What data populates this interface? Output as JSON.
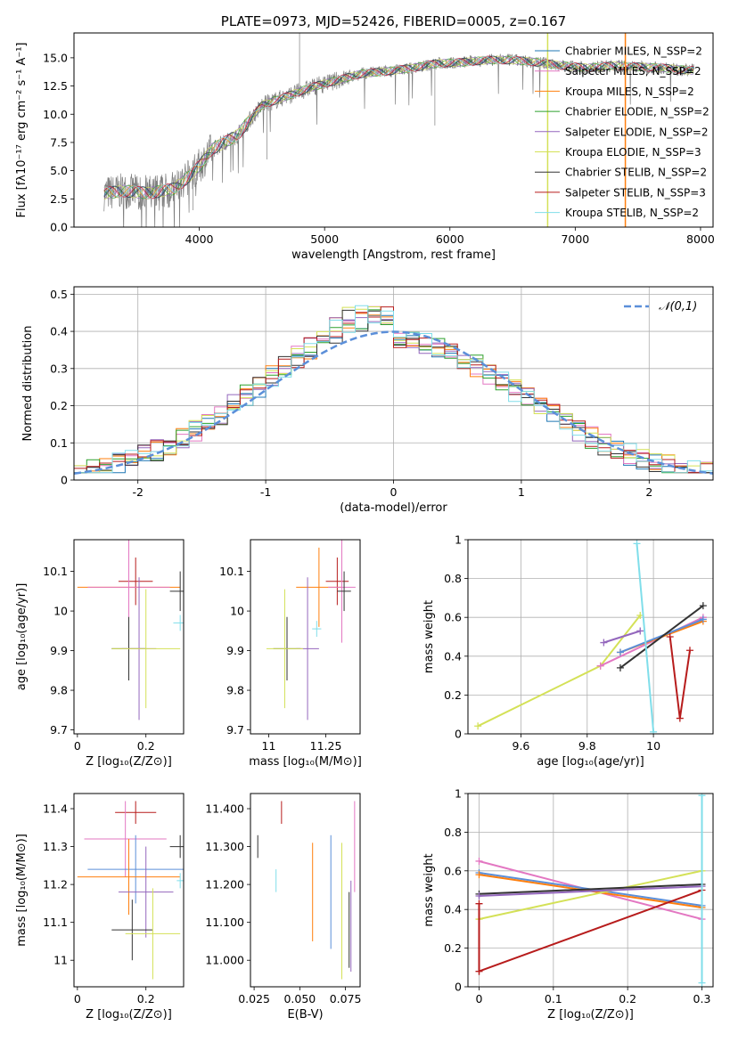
{
  "chart_data": [
    {
      "id": "spectrum",
      "type": "line",
      "title": "PLATE=0973, MJD=52426, FIBERID=0005, z=0.167",
      "xlabel": "wavelength [Angstrom, rest frame]",
      "ylabel": "Flux [fλ10⁻¹⁷ erg cm⁻² s⁻¹ A⁻¹]",
      "xlim": [
        3000,
        8100
      ],
      "ylim": [
        0,
        17.2
      ],
      "xticks": [
        4000,
        5000,
        6000,
        7000,
        8000
      ],
      "yticks": [
        0.0,
        2.5,
        5.0,
        7.5,
        10.0,
        12.5,
        15.0
      ],
      "grid": false,
      "legend_position": "top-right",
      "continuum": [
        [
          3240,
          3.0
        ],
        [
          3400,
          3.2
        ],
        [
          3600,
          3.0
        ],
        [
          3800,
          3.4
        ],
        [
          3900,
          4.3
        ],
        [
          4000,
          5.4
        ],
        [
          4100,
          6.9
        ],
        [
          4300,
          8.1
        ],
        [
          4500,
          10.8
        ],
        [
          4700,
          11.6
        ],
        [
          4900,
          12.4
        ],
        [
          5100,
          13.0
        ],
        [
          5300,
          13.6
        ],
        [
          5500,
          13.8
        ],
        [
          5700,
          14.1
        ],
        [
          5900,
          14.5
        ],
        [
          6100,
          14.6
        ],
        [
          6300,
          14.8
        ],
        [
          6500,
          14.8
        ],
        [
          6700,
          14.6
        ],
        [
          6900,
          14.3
        ],
        [
          7100,
          14.1
        ],
        [
          7300,
          14.3
        ],
        [
          7500,
          14.2
        ],
        [
          7700,
          14.1
        ],
        [
          7900,
          13.9
        ]
      ],
      "legend": [
        {
          "label": "Chabrier MILES, N_SSP=2",
          "color": "#1f77b4"
        },
        {
          "label": "Salpeter MILES, N_SSP=2",
          "color": "#e377c2"
        },
        {
          "label": "Kroupa MILES, N_SSP=2",
          "color": "#ff7f0e"
        },
        {
          "label": "Chabrier ELODIE, N_SSP=2",
          "color": "#2ca02c"
        },
        {
          "label": "Salpeter ELODIE, N_SSP=2",
          "color": "#9467bd"
        },
        {
          "label": "Kroupa ELODIE, N_SSP=3",
          "color": "#d4e157"
        },
        {
          "label": "Chabrier STELIB, N_SSP=2",
          "color": "#333333"
        },
        {
          "label": "Salpeter STELIB, N_SSP=3",
          "color": "#b71c1c"
        },
        {
          "label": "Kroupa STELIB, N_SSP=2",
          "color": "#80deea"
        }
      ],
      "vlines": [
        {
          "x": 6780,
          "color": "#d4e157"
        },
        {
          "x": 7400,
          "color": "#ff7f0e"
        }
      ]
    },
    {
      "id": "residuals",
      "type": "histogram",
      "xlabel": "(data-model)/error",
      "ylabel": "Normed distribution",
      "xlim": [
        -2.5,
        2.5
      ],
      "ylim": [
        0,
        0.52
      ],
      "xticks": [
        -2,
        -1,
        0,
        1,
        2
      ],
      "yticks": [
        0.0,
        0.1,
        0.2,
        0.3,
        0.4,
        0.5
      ],
      "grid": true,
      "legend_position": "top-right",
      "reference": {
        "label": "𝒩(0,1)",
        "color": "#5b8fd9",
        "mu": 0,
        "sigma": 1
      },
      "bin_width": 0.1,
      "peak": 0.47
    },
    {
      "id": "age_vs_Z",
      "type": "errorbar",
      "xlabel": "Z [log₁₀(Z/Z⊙)]",
      "ylabel": "age  [log₁₀(age/yr)]",
      "xlim": [
        -0.01,
        0.31
      ],
      "ylim": [
        9.69,
        10.18
      ],
      "xticks": [
        0.0,
        0.2
      ],
      "yticks": [
        9.7,
        9.8,
        9.9,
        10.0,
        10.1
      ],
      "points": [
        {
          "x": 0.15,
          "y": 10.06,
          "xerr": 0.15,
          "yerr": 0.01,
          "color": "#ff7f0e"
        },
        {
          "x": 0.17,
          "y": 10.075,
          "xerr": 0.05,
          "yerr": 0.06,
          "color": "#b71c1c"
        },
        {
          "x": 0.15,
          "y": 10.06,
          "xerr": 0.12,
          "yerr": 0.18,
          "color": "#e377c2"
        },
        {
          "x": 0.3,
          "y": 10.05,
          "xerr": 0.03,
          "yerr": 0.05,
          "color": "#333333"
        },
        {
          "x": 0.3,
          "y": 9.97,
          "xerr": 0.02,
          "yerr": 0.02,
          "color": "#80deea"
        },
        {
          "x": 0.15,
          "y": 9.905,
          "xerr": 0.05,
          "yerr": 0.08,
          "color": "#333333"
        },
        {
          "x": 0.18,
          "y": 9.905,
          "xerr": 0.05,
          "yerr": 0.18,
          "color": "#9467bd"
        },
        {
          "x": 0.2,
          "y": 9.905,
          "xerr": 0.1,
          "yerr": 0.15,
          "color": "#d4e157"
        }
      ]
    },
    {
      "id": "age_vs_mass",
      "type": "errorbar",
      "xlabel": "mass [log₁₀(M/M⊙)]",
      "ylabel": "",
      "xlim": [
        10.92,
        11.4
      ],
      "ylim": [
        9.69,
        10.18
      ],
      "xticks": [
        11.0,
        11.25
      ],
      "yticks": [
        9.7,
        9.8,
        9.9,
        10.0,
        10.1
      ],
      "points": [
        {
          "x": 11.22,
          "y": 10.06,
          "xerr": 0.1,
          "yerr": 0.1,
          "color": "#ff7f0e"
        },
        {
          "x": 11.3,
          "y": 10.075,
          "xerr": 0.05,
          "yerr": 0.06,
          "color": "#b71c1c"
        },
        {
          "x": 11.32,
          "y": 10.06,
          "xerr": 0.06,
          "yerr": 0.14,
          "color": "#e377c2"
        },
        {
          "x": 11.33,
          "y": 10.05,
          "xerr": 0.03,
          "yerr": 0.05,
          "color": "#333333"
        },
        {
          "x": 11.21,
          "y": 9.955,
          "xerr": 0.02,
          "yerr": 0.02,
          "color": "#80deea"
        },
        {
          "x": 11.08,
          "y": 9.905,
          "xerr": 0.06,
          "yerr": 0.08,
          "color": "#333333"
        },
        {
          "x": 11.17,
          "y": 9.905,
          "xerr": 0.05,
          "yerr": 0.18,
          "color": "#9467bd"
        },
        {
          "x": 11.07,
          "y": 9.905,
          "xerr": 0.08,
          "yerr": 0.15,
          "color": "#d4e157"
        }
      ]
    },
    {
      "id": "massweight_vs_age",
      "type": "line",
      "xlabel": "age  [log₁₀(age/yr)]",
      "ylabel": "mass weight",
      "xlim": [
        9.44,
        10.18
      ],
      "ylim": [
        0,
        1.0
      ],
      "xticks": [
        9.6,
        9.8,
        10.0
      ],
      "yticks": [
        0.0,
        0.2,
        0.4,
        0.6,
        0.8,
        1.0
      ],
      "grid": true,
      "series": [
        {
          "color": "#d4e157",
          "x": [
            9.47,
            9.84,
            9.96
          ],
          "y": [
            0.04,
            0.35,
            0.61
          ]
        },
        {
          "color": "#e377c2",
          "x": [
            9.84,
            10.15
          ],
          "y": [
            0.35,
            0.6
          ]
        },
        {
          "color": "#ff7f0e",
          "x": [
            9.9,
            10.15
          ],
          "y": [
            0.42,
            0.58
          ]
        },
        {
          "color": "#5b8fd9",
          "x": [
            9.9,
            10.15
          ],
          "y": [
            0.42,
            0.59
          ]
        },
        {
          "color": "#333333",
          "x": [
            9.9,
            10.15
          ],
          "y": [
            0.34,
            0.66
          ]
        },
        {
          "color": "#9467bd",
          "x": [
            9.85,
            9.96
          ],
          "y": [
            0.47,
            0.53
          ]
        },
        {
          "color": "#b71c1c",
          "x": [
            10.05,
            10.08,
            10.11
          ],
          "y": [
            0.5,
            0.08,
            0.43
          ]
        },
        {
          "color": "#80deea",
          "x": [
            9.95,
            10.0
          ],
          "y": [
            0.98,
            0.01
          ]
        }
      ]
    },
    {
      "id": "mass_vs_Z",
      "type": "errorbar",
      "xlabel": "Z [log₁₀(Z/Z⊙)]",
      "ylabel": "mass [log₁₀(M/M⊙)]",
      "xlim": [
        -0.01,
        0.31
      ],
      "ylim": [
        10.93,
        11.44
      ],
      "xticks": [
        0.0,
        0.2
      ],
      "yticks": [
        11.0,
        11.1,
        11.2,
        11.3,
        11.4
      ],
      "points": [
        {
          "x": 0.17,
          "y": 11.39,
          "xerr": 0.06,
          "yerr": 0.03,
          "color": "#b71c1c"
        },
        {
          "x": 0.14,
          "y": 11.32,
          "xerr": 0.12,
          "yerr": 0.1,
          "color": "#e377c2"
        },
        {
          "x": 0.3,
          "y": 11.3,
          "xerr": 0.03,
          "yerr": 0.03,
          "color": "#333333"
        },
        {
          "x": 0.17,
          "y": 11.24,
          "xerr": 0.14,
          "yerr": 0.09,
          "color": "#5b8fd9"
        },
        {
          "x": 0.15,
          "y": 11.22,
          "xerr": 0.15,
          "yerr": 0.1,
          "color": "#ff7f0e"
        },
        {
          "x": 0.3,
          "y": 11.21,
          "xerr": 0.01,
          "yerr": 0.02,
          "color": "#80deea"
        },
        {
          "x": 0.2,
          "y": 11.18,
          "xerr": 0.08,
          "yerr": 0.12,
          "color": "#9467bd"
        },
        {
          "x": 0.16,
          "y": 11.08,
          "xerr": 0.06,
          "yerr": 0.08,
          "color": "#333333"
        },
        {
          "x": 0.22,
          "y": 11.07,
          "xerr": 0.08,
          "yerr": 0.12,
          "color": "#d4e157"
        }
      ]
    },
    {
      "id": "mass_vs_ebv",
      "type": "errorbar",
      "xlabel": "E(B-V)",
      "ylabel": "",
      "xlim": [
        0.023,
        0.083
      ],
      "ylim": [
        10.93,
        11.44
      ],
      "xticks": [
        0.025,
        0.05,
        0.075
      ],
      "yticks": [
        11.0,
        11.1,
        11.2,
        11.3,
        11.4
      ],
      "points": [
        {
          "x": 0.04,
          "y": 11.39,
          "yerr": 0.03,
          "color": "#b71c1c"
        },
        {
          "x": 0.027,
          "y": 11.3,
          "yerr": 0.03,
          "color": "#333333"
        },
        {
          "x": 0.037,
          "y": 11.21,
          "yerr": 0.03,
          "color": "#80deea"
        },
        {
          "x": 0.057,
          "y": 11.18,
          "yerr": 0.13,
          "color": "#ff7f0e"
        },
        {
          "x": 0.067,
          "y": 11.18,
          "yerr": 0.15,
          "color": "#5b8fd9"
        },
        {
          "x": 0.08,
          "y": 11.3,
          "yerr": 0.12,
          "color": "#e377c2"
        },
        {
          "x": 0.078,
          "y": 11.09,
          "yerr": 0.12,
          "color": "#9467bd"
        },
        {
          "x": 0.073,
          "y": 11.13,
          "yerr": 0.18,
          "color": "#d4e157"
        },
        {
          "x": 0.077,
          "y": 11.08,
          "yerr": 0.1,
          "color": "#333333"
        }
      ]
    },
    {
      "id": "massweight_vs_Z",
      "type": "line",
      "xlabel": "Z [log₁₀(Z/Z⊙)]",
      "ylabel": "mass weight",
      "xlim": [
        -0.015,
        0.315
      ],
      "ylim": [
        0,
        1.0
      ],
      "xticks": [
        0.0,
        0.1,
        0.2,
        0.3
      ],
      "yticks": [
        0.0,
        0.2,
        0.4,
        0.6,
        0.8,
        1.0
      ],
      "grid": true,
      "series": [
        {
          "color": "#e377c2",
          "x": [
            0.0,
            0.3
          ],
          "y": [
            0.65,
            0.35
          ]
        },
        {
          "color": "#5b8fd9",
          "x": [
            0.0,
            0.3
          ],
          "y": [
            0.59,
            0.42
          ]
        },
        {
          "color": "#ff7f0e",
          "x": [
            0.0,
            0.3
          ],
          "y": [
            0.58,
            0.41
          ]
        },
        {
          "color": "#d4e157",
          "x": [
            0.0,
            0.3
          ],
          "y": [
            0.35,
            0.6
          ]
        },
        {
          "color": "#333333",
          "x": [
            0.0,
            0.3
          ],
          "y": [
            0.48,
            0.53
          ]
        },
        {
          "color": "#9467bd",
          "x": [
            0.0,
            0.3
          ],
          "y": [
            0.47,
            0.52
          ]
        },
        {
          "color": "#b71c1c",
          "x": [
            0.0,
            0.3
          ],
          "y": [
            0.08,
            0.5
          ]
        },
        {
          "color": "#b71c1c",
          "x": [
            0.0,
            0.0
          ],
          "y": [
            0.43,
            0.08
          ]
        },
        {
          "color": "#80deea",
          "x": [
            0.3,
            0.3
          ],
          "y": [
            0.99,
            0.02
          ]
        }
      ]
    }
  ]
}
